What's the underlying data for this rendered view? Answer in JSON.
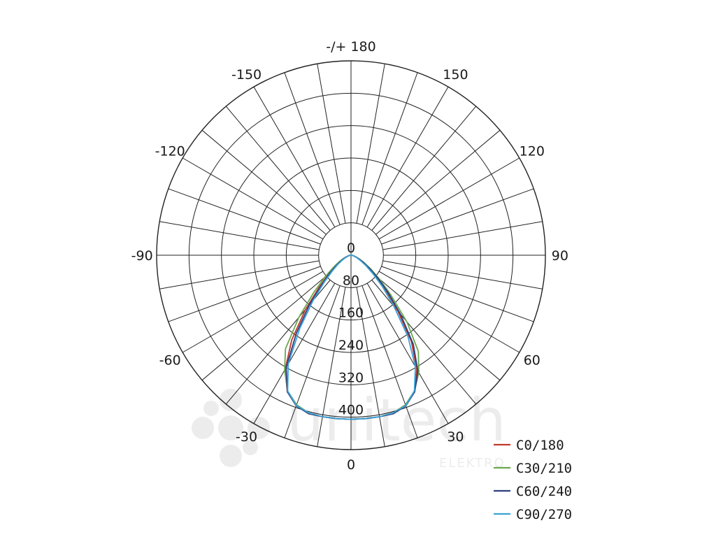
{
  "chart_data": {
    "type": "polar-line",
    "title": "",
    "angle_unit": "degrees",
    "angle_labels": [
      {
        "angle": 180,
        "text": "-/+ 180"
      },
      {
        "angle": 150,
        "text": "150"
      },
      {
        "angle": -150,
        "text": "-150"
      },
      {
        "angle": 120,
        "text": "120"
      },
      {
        "angle": -120,
        "text": "-120"
      },
      {
        "angle": 90,
        "text": "90"
      },
      {
        "angle": -90,
        "text": "-90"
      },
      {
        "angle": 60,
        "text": "60"
      },
      {
        "angle": -60,
        "text": "-60"
      },
      {
        "angle": 30,
        "text": "30"
      },
      {
        "angle": -30,
        "text": "-30"
      },
      {
        "angle": 0,
        "text": "0"
      }
    ],
    "radial_ticks": [
      0,
      80,
      160,
      240,
      320,
      400
    ],
    "radial_tick_labels": [
      "0",
      "80",
      "160",
      "240",
      "320",
      "400"
    ],
    "rmax": 480,
    "grid_angle_step": 10,
    "series": [
      {
        "name": "C0/180",
        "color": "#c0392b",
        "angles": [
          -90,
          -85,
          -80,
          -75,
          -70,
          -65,
          -60,
          -55,
          -50,
          -45,
          -40,
          -35,
          -30,
          -25,
          -20,
          -15,
          -10,
          -5,
          0,
          5,
          10,
          15,
          20,
          25,
          30,
          35,
          40,
          45,
          50,
          55,
          60,
          65,
          70,
          75,
          80,
          85,
          90
        ],
        "values": [
          0,
          2,
          4,
          8,
          14,
          22,
          32,
          48,
          72,
          110,
          175,
          255,
          325,
          372,
          395,
          405,
          405,
          405,
          405,
          405,
          405,
          405,
          395,
          372,
          325,
          260,
          180,
          120,
          80,
          52,
          34,
          22,
          14,
          8,
          4,
          2,
          0
        ]
      },
      {
        "name": "C30/210",
        "color": "#6aa84f",
        "angles": [
          -90,
          -85,
          -80,
          -75,
          -70,
          -65,
          -60,
          -55,
          -50,
          -45,
          -40,
          -35,
          -30,
          -25,
          -20,
          -15,
          -10,
          -5,
          0,
          5,
          10,
          15,
          20,
          25,
          30,
          35,
          40,
          45,
          50,
          55,
          60,
          65,
          70,
          75,
          80,
          85,
          90
        ],
        "values": [
          0,
          2,
          4,
          8,
          14,
          24,
          36,
          55,
          85,
          130,
          200,
          282,
          328,
          370,
          393,
          403,
          405,
          405,
          405,
          405,
          405,
          403,
          393,
          370,
          335,
          290,
          215,
          140,
          92,
          60,
          38,
          25,
          15,
          8,
          4,
          2,
          0
        ]
      },
      {
        "name": "C60/240",
        "color": "#2e3f80",
        "angles": [
          -90,
          -85,
          -80,
          -75,
          -70,
          -65,
          -60,
          -55,
          -50,
          -45,
          -40,
          -35,
          -30,
          -25,
          -20,
          -15,
          -10,
          -5,
          0,
          5,
          10,
          15,
          20,
          25,
          30,
          35,
          40,
          45,
          50,
          55,
          60,
          65,
          70,
          75,
          80,
          85,
          90
        ],
        "values": [
          0,
          2,
          4,
          7,
          12,
          20,
          30,
          45,
          68,
          100,
          160,
          235,
          320,
          372,
          396,
          405,
          405,
          405,
          405,
          405,
          405,
          405,
          396,
          372,
          330,
          268,
          190,
          128,
          84,
          54,
          34,
          22,
          13,
          7,
          4,
          2,
          0
        ]
      },
      {
        "name": "C90/270",
        "color": "#3aa3d9",
        "angles": [
          -90,
          -85,
          -80,
          -75,
          -70,
          -65,
          -60,
          -55,
          -50,
          -45,
          -40,
          -35,
          -30,
          -25,
          -20,
          -15,
          -10,
          -5,
          0,
          5,
          10,
          15,
          20,
          25,
          30,
          35,
          40,
          45,
          50,
          55,
          60,
          65,
          70,
          75,
          80,
          85,
          90
        ],
        "values": [
          0,
          2,
          3,
          6,
          10,
          17,
          26,
          40,
          60,
          92,
          145,
          220,
          310,
          370,
          395,
          403,
          405,
          405,
          405,
          405,
          405,
          403,
          395,
          370,
          318,
          245,
          165,
          110,
          70,
          45,
          28,
          18,
          11,
          6,
          3,
          2,
          0
        ]
      }
    ],
    "legend": {
      "position": "bottom-right",
      "entries": [
        "C0/180",
        "C30/210",
        "C60/240",
        "C90/270"
      ]
    },
    "grid": true
  },
  "watermark": {
    "brand": "unitech",
    "sub": "ELEKTRO"
  }
}
